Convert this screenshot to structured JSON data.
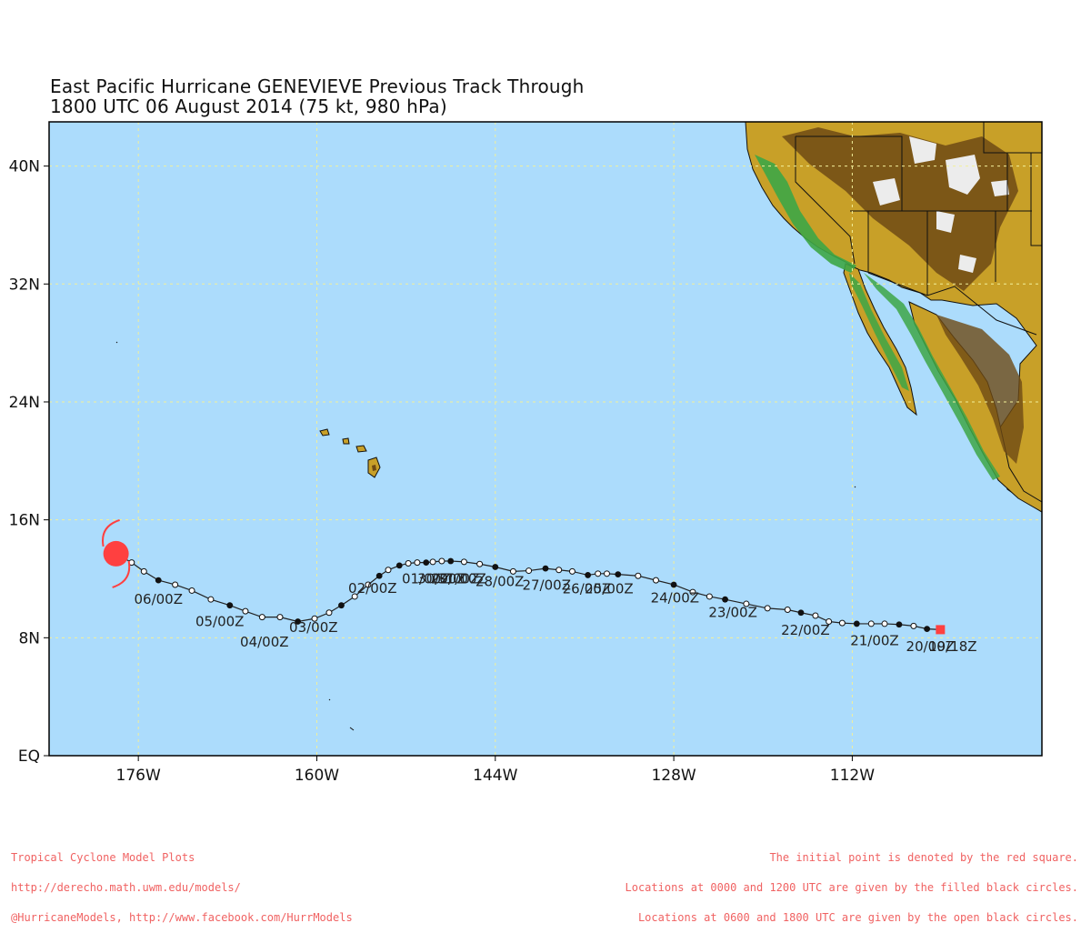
{
  "title": {
    "line1": "East Pacific Hurricane GENEVIEVE Previous Track Through",
    "line2": "1800 UTC 06 August 2014 (75 kt, 980 hPa)"
  },
  "map": {
    "lon_range": [
      -184,
      -95
    ],
    "lat_range": [
      0,
      43
    ],
    "x_ticks": [
      {
        "lon": -176,
        "label": "176W"
      },
      {
        "lon": -160,
        "label": "160W"
      },
      {
        "lon": -144,
        "label": "144W"
      },
      {
        "lon": -128,
        "label": "128W"
      },
      {
        "lon": -112,
        "label": "112W"
      }
    ],
    "y_ticks": [
      {
        "lat": 40,
        "label": "40N"
      },
      {
        "lat": 32,
        "label": "32N"
      },
      {
        "lat": 24,
        "label": "24N"
      },
      {
        "lat": 16,
        "label": "16N"
      },
      {
        "lat": 8,
        "label": "8N"
      },
      {
        "lat": 0,
        "label": "EQ"
      }
    ],
    "colors": {
      "ocean": "#acdcfc",
      "grid": "#f2f09a",
      "track": "#222222",
      "current_storm": "#ff4040",
      "start_marker": "#ff4040",
      "land_low": "#3da646",
      "land_mid": "#c8a028",
      "land_high": "#6e4a14",
      "snow": "#ececec",
      "footer_text": "#f06262"
    }
  },
  "track": {
    "points": [
      [
        -104.1,
        8.55,
        "start"
      ],
      [
        -105.3,
        8.6,
        "filled"
      ],
      [
        -106.5,
        8.8,
        "open"
      ],
      [
        -107.8,
        8.9,
        "filled"
      ],
      [
        -109.1,
        8.95,
        "open"
      ],
      [
        -110.3,
        8.95,
        "open"
      ],
      [
        -111.6,
        8.95,
        "filled"
      ],
      [
        -112.9,
        9.0,
        "open"
      ],
      [
        -114.1,
        9.1,
        "open"
      ],
      [
        -115.3,
        9.5,
        "open"
      ],
      [
        -116.6,
        9.7,
        "filled"
      ],
      [
        -117.8,
        9.9,
        "open"
      ],
      [
        -119.6,
        10.0,
        "open"
      ],
      [
        -121.5,
        10.3,
        "open"
      ],
      [
        -123.4,
        10.6,
        "filled"
      ],
      [
        -124.8,
        10.8,
        "open"
      ],
      [
        -126.3,
        11.1,
        "open"
      ],
      [
        -128.0,
        11.6,
        "filled"
      ],
      [
        -129.6,
        11.9,
        "open"
      ],
      [
        -131.2,
        12.2,
        "open"
      ],
      [
        -133.0,
        12.3,
        "filled"
      ],
      [
        -134.0,
        12.35,
        "open"
      ],
      [
        -134.8,
        12.35,
        "open"
      ],
      [
        -135.7,
        12.25,
        "filled"
      ],
      [
        -137.1,
        12.5,
        "open"
      ],
      [
        -138.3,
        12.6,
        "open"
      ],
      [
        -139.5,
        12.7,
        "filled"
      ],
      [
        -141.0,
        12.55,
        "open"
      ],
      [
        -142.4,
        12.5,
        "open"
      ],
      [
        -144.0,
        12.8,
        "filled"
      ],
      [
        -145.4,
        13.0,
        "open"
      ],
      [
        -146.8,
        13.15,
        "open"
      ],
      [
        -148.0,
        13.2,
        "filled"
      ],
      [
        -148.8,
        13.2,
        "open"
      ],
      [
        -149.6,
        13.15,
        "open"
      ],
      [
        -150.2,
        13.1,
        "filled"
      ],
      [
        -151.0,
        13.1,
        "open"
      ],
      [
        -151.8,
        13.05,
        "open"
      ],
      [
        -152.6,
        12.9,
        "filled"
      ],
      [
        -153.6,
        12.6,
        "open"
      ],
      [
        -154.4,
        12.2,
        "filled"
      ],
      [
        -155.4,
        11.6,
        "open"
      ],
      [
        -156.6,
        10.8,
        "open"
      ],
      [
        -157.8,
        10.2,
        "filled"
      ],
      [
        -158.9,
        9.7,
        "open"
      ],
      [
        -160.2,
        9.3,
        "open"
      ],
      [
        -161.7,
        9.1,
        "filled"
      ],
      [
        -163.3,
        9.4,
        "open"
      ],
      [
        -164.9,
        9.4,
        "open"
      ],
      [
        -166.4,
        9.8,
        "open"
      ],
      [
        -167.8,
        10.2,
        "filled"
      ],
      [
        -169.5,
        10.6,
        "open"
      ],
      [
        -171.2,
        11.2,
        "open"
      ],
      [
        -172.7,
        11.6,
        "open"
      ],
      [
        -174.2,
        11.9,
        "filled"
      ],
      [
        -175.5,
        12.5,
        "open"
      ],
      [
        -176.6,
        13.1,
        "open"
      ],
      [
        -178.0,
        13.7,
        "current"
      ]
    ],
    "labels": [
      {
        "lon": -105.0,
        "lat": 7.1,
        "text": "20/00Z"
      },
      {
        "lon": -103.0,
        "lat": 7.1,
        "text": "19/18Z"
      },
      {
        "lon": -110.0,
        "lat": 7.5,
        "text": "21/00Z"
      },
      {
        "lon": -116.2,
        "lat": 8.2,
        "text": "22/00Z"
      },
      {
        "lon": -122.7,
        "lat": 9.4,
        "text": "23/00Z"
      },
      {
        "lon": -127.9,
        "lat": 10.4,
        "text": "24/00Z"
      },
      {
        "lon": -133.8,
        "lat": 11.0,
        "text": "25/00Z"
      },
      {
        "lon": -135.8,
        "lat": 11.0,
        "text": "26/00Z"
      },
      {
        "lon": -139.4,
        "lat": 11.25,
        "text": "27/00Z"
      },
      {
        "lon": -143.6,
        "lat": 11.5,
        "text": "28/00Z"
      },
      {
        "lon": -150.2,
        "lat": 11.7,
        "text": "01/00Z"
      },
      {
        "lon": -148.8,
        "lat": 11.7,
        "text": "30/00Z"
      },
      {
        "lon": -147.6,
        "lat": 11.7,
        "text": "29/00Z"
      },
      {
        "lon": -147.0,
        "lat": 11.7,
        "text": "31/00Z"
      },
      {
        "lon": -155.0,
        "lat": 11.05,
        "text": "02/00Z"
      },
      {
        "lon": -160.3,
        "lat": 8.4,
        "text": "03/00Z"
      },
      {
        "lon": -164.7,
        "lat": 7.4,
        "text": "04/00Z"
      },
      {
        "lon": -168.7,
        "lat": 8.8,
        "text": "05/00Z"
      },
      {
        "lon": -174.2,
        "lat": 10.3,
        "text": "06/00Z"
      }
    ]
  },
  "footer": {
    "left": [
      "Tropical Cyclone Model Plots",
      "http://derecho.math.uwm.edu/models/",
      "@HurricaneModels, http://www.facebook.com/HurrModels"
    ],
    "right": [
      "The initial point is denoted by the red square.",
      "Locations at 0000 and 1200 UTC are given by the filled black circles.",
      "Locations at 0600 and 1800 UTC are given by the open black circles."
    ]
  }
}
